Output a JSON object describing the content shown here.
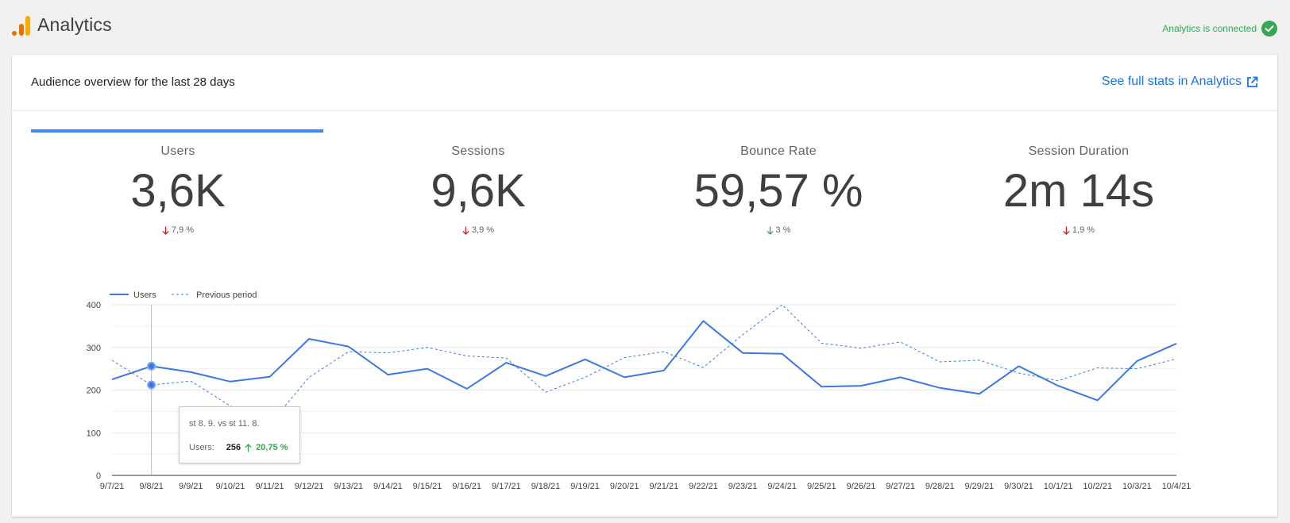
{
  "header": {
    "app_title": "Analytics",
    "connected_text": "Analytics is connected",
    "brand_colors": {
      "bar_dark": "#e37400",
      "bar_light": "#f9ab00",
      "connected": "#34a853"
    }
  },
  "card": {
    "title": "Audience overview for the last 28 days",
    "full_stats_link": "See full stats in Analytics",
    "active_tab": "Users"
  },
  "metrics": [
    {
      "label": "Users",
      "value": "3,6K",
      "delta": "7,9 %",
      "direction": "down",
      "color": "#c5221f"
    },
    {
      "label": "Sessions",
      "value": "9,6K",
      "delta": "3,9 %",
      "direction": "down",
      "color": "#c5221f"
    },
    {
      "label": "Bounce Rate",
      "value": "59,57 %",
      "delta": "3 %",
      "direction": "down",
      "color": "#34a853"
    },
    {
      "label": "Session Duration",
      "value": "2m 14s",
      "delta": "1,9 %",
      "direction": "down",
      "color": "#c5221f"
    }
  ],
  "chart_data": {
    "type": "line",
    "x": [
      "9/7/21",
      "9/8/21",
      "9/9/21",
      "9/10/21",
      "9/11/21",
      "9/12/21",
      "9/13/21",
      "9/14/21",
      "9/15/21",
      "9/16/21",
      "9/17/21",
      "9/18/21",
      "9/19/21",
      "9/20/21",
      "9/21/21",
      "9/22/21",
      "9/23/21",
      "9/24/21",
      "9/25/21",
      "9/26/21",
      "9/27/21",
      "9/28/21",
      "9/29/21",
      "9/30/21",
      "10/1/21",
      "10/2/21",
      "10/3/21",
      "10/4/21"
    ],
    "series": [
      {
        "name": "Users",
        "style": "solid",
        "color": "#3b78e7",
        "values": [
          225,
          256,
          242,
          220,
          231,
          320,
          302,
          236,
          250,
          203,
          264,
          233,
          272,
          230,
          246,
          362,
          287,
          285,
          208,
          210,
          230,
          205,
          191,
          256,
          210,
          176,
          268,
          309
        ]
      },
      {
        "name": "Previous period",
        "style": "dashed",
        "color": "#3b78e7",
        "values": [
          270,
          212,
          221,
          163,
          120,
          230,
          290,
          287,
          300,
          280,
          275,
          195,
          230,
          276,
          290,
          253,
          330,
          400,
          310,
          298,
          313,
          266,
          270,
          240,
          222,
          252,
          250,
          273
        ]
      }
    ],
    "ylim": [
      0,
      400
    ],
    "yticks": [
      0,
      100,
      200,
      300,
      400
    ],
    "grid": true,
    "legend": "top-left",
    "highlight_index": 1
  },
  "tooltip": {
    "title": "st 8. 9. vs st 11. 8.",
    "label": "Users:",
    "value": "256",
    "change": "20,75 %"
  }
}
